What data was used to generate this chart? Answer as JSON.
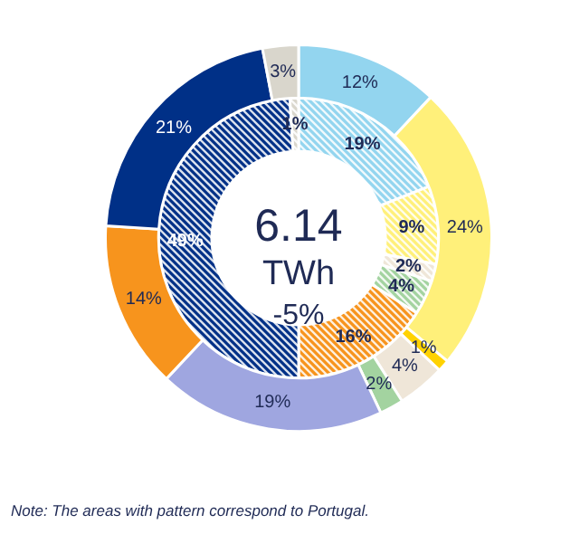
{
  "chart_data": {
    "type": "donut",
    "categories": [
      null,
      null,
      null,
      null,
      null,
      null,
      null,
      null,
      null
    ],
    "series": [
      {
        "values": [
          12,
          24,
          1,
          4,
          2,
          19,
          14,
          21,
          3
        ],
        "colors": [
          "#93d5ef",
          "#fff07a",
          "#ffd200",
          "#efe6d8",
          "#a3d3a0",
          "#9fa6e0",
          "#f7941d",
          "#003087",
          "#d9d6cc"
        ],
        "value_labels": [
          "12%",
          "24%",
          "1%",
          "4%",
          "2%",
          "19%",
          "14%",
          "21%",
          "3%"
        ]
      },
      {
        "values": [
          19,
          9,
          null,
          2,
          4,
          null,
          16,
          49,
          1
        ],
        "colors": [
          "#93d5ef",
          "#fff07a",
          "#ffd200",
          "#efe6d8",
          "#a3d3a0",
          "#9fa6e0",
          "#f7941d",
          "#003087",
          "#d9d6cc"
        ],
        "value_labels": [
          "19%",
          "9%",
          null,
          "2%",
          "4%",
          null,
          "16%",
          "49%",
          "1%"
        ]
      }
    ],
    "annotations": [
      "6.14",
      "TWh",
      "-5%",
      "Note: The  areas with pattern correspond  to Portugal."
    ]
  }
}
